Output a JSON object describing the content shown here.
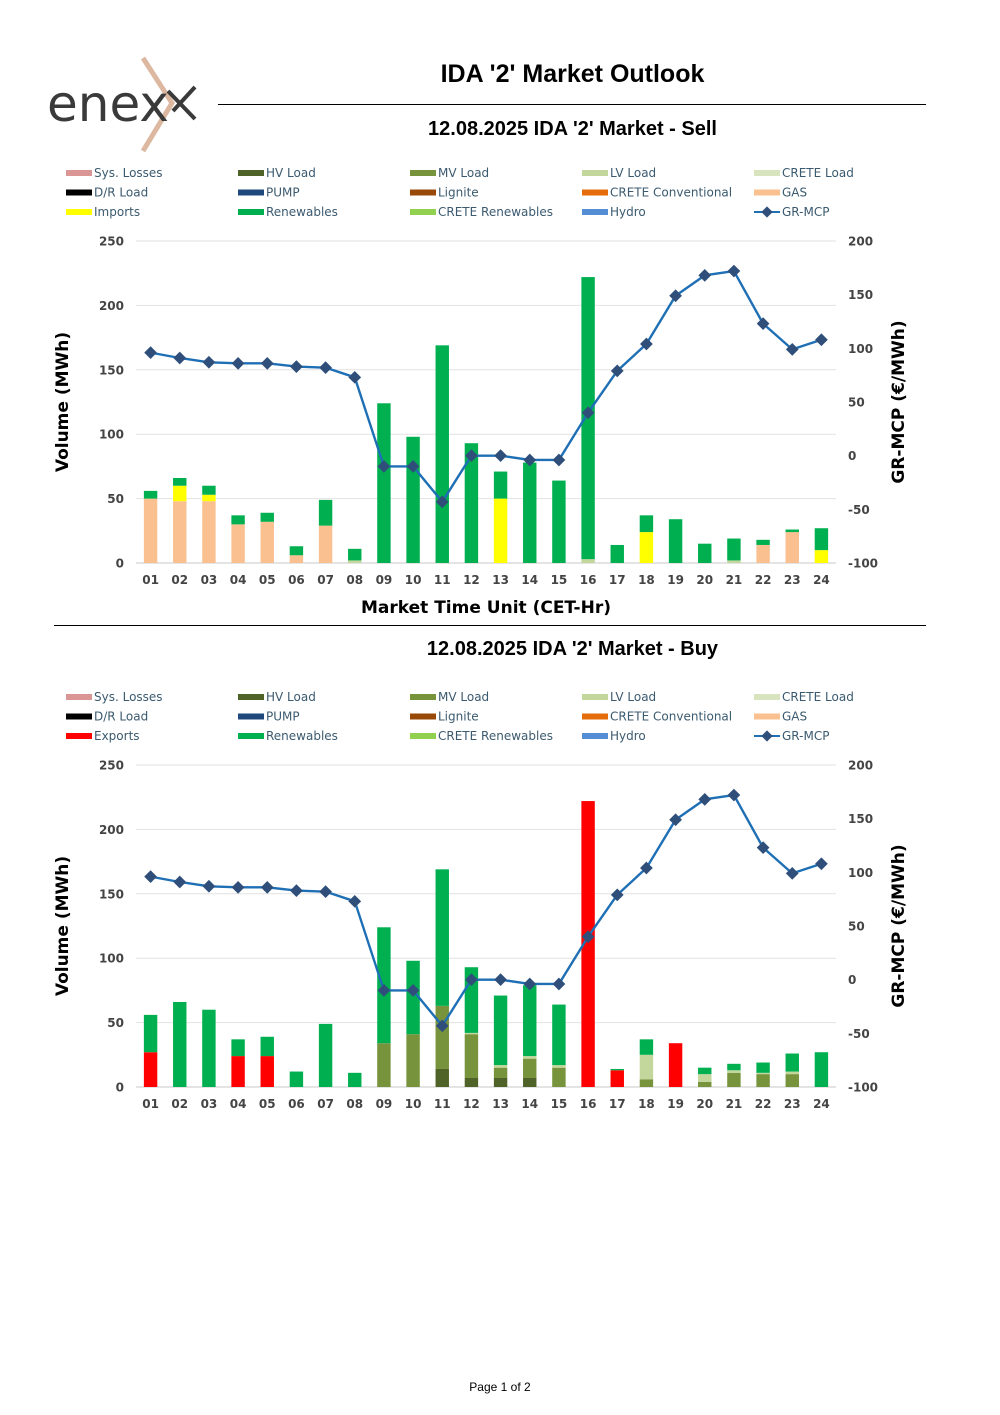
{
  "brand": {
    "logo_text": "enex"
  },
  "header": {
    "title": "IDA '2' Market Outlook"
  },
  "footer": {
    "page_label": "Page 1 of 2"
  },
  "colors": {
    "Sys. Losses": "#d99694",
    "HV Load": "#4f6228",
    "MV Load": "#77933c",
    "LV Load": "#c3d69b",
    "CRETE Load": "#d7e4bd",
    "D/R Load": "#000000",
    "PUMP": "#1f497d",
    "Lignite": "#984807",
    "CRETE Conventional": "#e46c0a",
    "GAS": "#fac090",
    "Imports": "#ffff00",
    "Exports": "#ff0000",
    "Renewables": "#00b050",
    "CRETE Renewables": "#92d050",
    "Hydro": "#558ed5",
    "GR-MCP": "#1f6fb5",
    "marker": "#2f4f7a"
  },
  "chart_data": [
    {
      "type": "bar",
      "title": "12.08.2025  IDA '2' Market - Sell",
      "xlabel": "Market Time Unit (CET-Hr)",
      "ylabel": "Volume (MWh)",
      "y2label": "GR-MCP (€/MWh)",
      "ylim": [
        0,
        250
      ],
      "y2lim": [
        -100,
        200
      ],
      "yticks": [
        0,
        50,
        100,
        150,
        200,
        250
      ],
      "y2ticks": [
        -100,
        -50,
        0,
        50,
        100,
        150,
        200
      ],
      "stacked": true,
      "legend": [
        "Sys. Losses",
        "HV Load",
        "MV Load",
        "LV Load",
        "CRETE Load",
        "D/R Load",
        "PUMP",
        "Lignite",
        "CRETE Conventional",
        "GAS",
        "Imports",
        "Renewables",
        "CRETE Renewables",
        "Hydro",
        "GR-MCP"
      ],
      "categories": [
        "01",
        "02",
        "03",
        "04",
        "05",
        "06",
        "07",
        "08",
        "09",
        "10",
        "11",
        "12",
        "13",
        "14",
        "15",
        "16",
        "17",
        "18",
        "19",
        "20",
        "21",
        "22",
        "23",
        "24"
      ],
      "series": [
        {
          "name": "GAS",
          "values": [
            50,
            48,
            48,
            30,
            32,
            6,
            29,
            0,
            0,
            0,
            0,
            0,
            0,
            0,
            0,
            0,
            0,
            0,
            0,
            0,
            0,
            14,
            24,
            0
          ]
        },
        {
          "name": "LV Load",
          "values": [
            0,
            0,
            0,
            0,
            0,
            0,
            0,
            2,
            0,
            0,
            0,
            0,
            0,
            0,
            0,
            3,
            0,
            0,
            0,
            0,
            2,
            0,
            0,
            0
          ]
        },
        {
          "name": "Imports",
          "values": [
            0,
            12,
            5,
            0,
            0,
            0,
            0,
            0,
            0,
            0,
            0,
            0,
            50,
            0,
            0,
            0,
            0,
            24,
            0,
            0,
            0,
            0,
            0,
            10
          ]
        },
        {
          "name": "Renewables",
          "values": [
            6,
            6,
            7,
            7,
            7,
            7,
            20,
            9,
            124,
            98,
            169,
            93,
            21,
            78,
            64,
            219,
            14,
            13,
            34,
            15,
            17,
            4,
            2,
            17
          ]
        }
      ],
      "line": {
        "name": "GR-MCP",
        "axis": "right",
        "values": [
          96,
          91,
          87,
          86,
          86,
          83,
          82,
          73,
          -10,
          -10,
          -43,
          0,
          0,
          -4,
          -4,
          40,
          79,
          104,
          149,
          168,
          172,
          123,
          99,
          108
        ]
      }
    },
    {
      "type": "bar",
      "title": "12.08.2025  IDA '2' Market - Buy",
      "xlabel": "",
      "ylabel": "Volume (MWh)",
      "y2label": "GR-MCP (€/MWh)",
      "ylim": [
        0,
        250
      ],
      "y2lim": [
        -100,
        200
      ],
      "yticks": [
        0,
        50,
        100,
        150,
        200,
        250
      ],
      "y2ticks": [
        -100,
        -50,
        0,
        50,
        100,
        150,
        200
      ],
      "stacked": true,
      "legend": [
        "Sys. Losses",
        "HV Load",
        "MV Load",
        "LV Load",
        "CRETE Load",
        "D/R Load",
        "PUMP",
        "Lignite",
        "CRETE Conventional",
        "GAS",
        "Exports",
        "Renewables",
        "CRETE Renewables",
        "Hydro",
        "GR-MCP"
      ],
      "categories": [
        "01",
        "02",
        "03",
        "04",
        "05",
        "06",
        "07",
        "08",
        "09",
        "10",
        "11",
        "12",
        "13",
        "14",
        "15",
        "16",
        "17",
        "18",
        "19",
        "20",
        "21",
        "22",
        "23",
        "24"
      ],
      "series": [
        {
          "name": "Exports",
          "values": [
            27,
            0,
            0,
            24,
            24,
            0,
            0,
            0,
            0,
            0,
            0,
            0,
            0,
            0,
            0,
            222,
            13,
            0,
            34,
            0,
            0,
            0,
            0,
            0
          ]
        },
        {
          "name": "HV Load",
          "values": [
            0,
            0,
            0,
            0,
            0,
            0,
            0,
            0,
            0,
            0,
            14,
            7,
            7,
            7,
            0,
            0,
            0,
            0,
            0,
            0,
            0,
            0,
            0,
            0
          ]
        },
        {
          "name": "MV Load",
          "values": [
            0,
            0,
            0,
            0,
            0,
            0,
            0,
            0,
            34,
            41,
            49,
            34,
            8,
            15,
            15,
            0,
            0,
            6,
            0,
            4,
            11,
            10,
            10,
            0
          ]
        },
        {
          "name": "LV Load",
          "values": [
            0,
            0,
            0,
            0,
            0,
            0,
            0,
            0,
            0,
            0,
            0,
            1,
            2,
            2,
            2,
            0,
            0,
            19,
            0,
            6,
            2,
            1,
            2,
            0
          ]
        },
        {
          "name": "Renewables",
          "values": [
            29,
            66,
            60,
            13,
            15,
            12,
            49,
            11,
            90,
            57,
            106,
            51,
            54,
            55,
            47,
            0,
            1,
            12,
            0,
            5,
            5,
            8,
            14,
            27
          ]
        }
      ],
      "line": {
        "name": "GR-MCP",
        "axis": "right",
        "values": [
          96,
          91,
          87,
          86,
          86,
          83,
          82,
          73,
          -10,
          -10,
          -43,
          0,
          0,
          -4,
          -4,
          40,
          79,
          104,
          149,
          168,
          172,
          123,
          99,
          108
        ]
      }
    }
  ]
}
